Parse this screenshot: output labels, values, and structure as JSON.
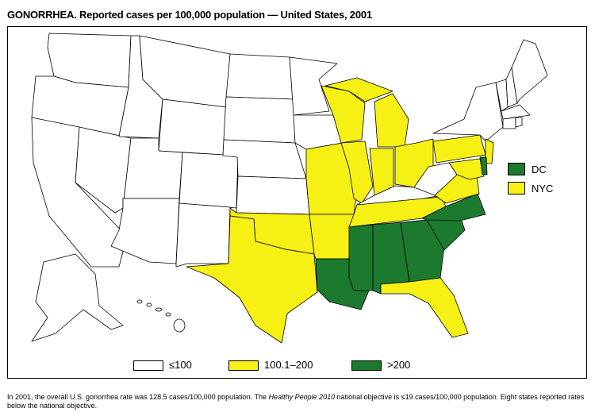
{
  "title": "GONORRHEA. Reported cases per 100,000 population — United States, 2001",
  "legend": [
    {
      "label": "≤100",
      "color": "#ffffff"
    },
    {
      "label": "100.1–200",
      "color": "#f7f015"
    },
    {
      "label": ">200",
      "color": "#1c7a2e"
    }
  ],
  "side_legend": [
    {
      "label": "DC",
      "color": "#1c7a2e"
    },
    {
      "label": "NYC",
      "color": "#f7f015"
    }
  ],
  "footnote": {
    "part1": "In 2001, the overall U.S. gonorrhea rate was 128.5 cases/100,000 population. The ",
    "italic": "Healthy People 2010",
    "part2": " national objective is ≤19 cases/100,000 population. Eight states reported rates below the national objective."
  }
}
